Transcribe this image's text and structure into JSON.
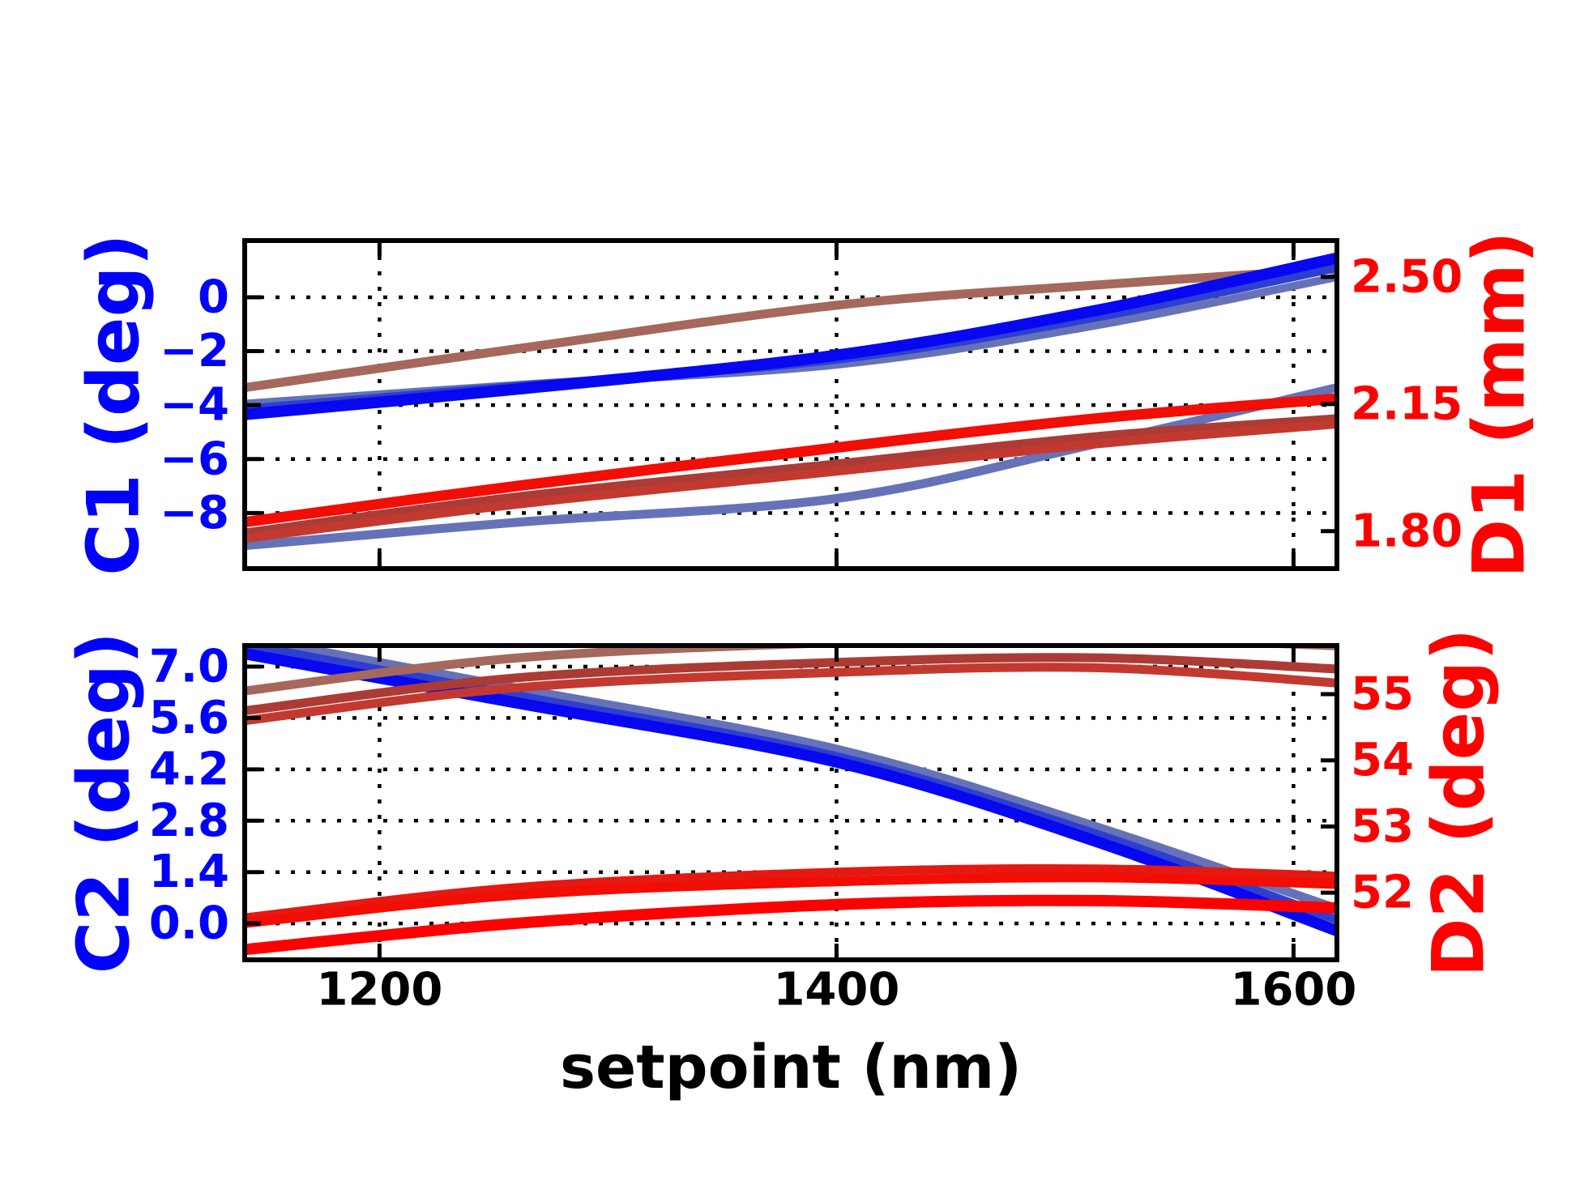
{
  "figure": {
    "background": "#ffffff",
    "frame_color": "#000000",
    "left_axis_color": "#0000ff",
    "right_axis_color": "#ff0000"
  },
  "chart_data": {
    "type": "line",
    "xlabel": "setpoint (nm)",
    "xlim": [
      1141,
      1619
    ],
    "x_ticks": [
      {
        "value": 1200,
        "label": "1200"
      },
      {
        "value": 1400,
        "label": "1400"
      },
      {
        "value": 1600,
        "label": "1600"
      }
    ],
    "x": [
      1141,
      1261,
      1400,
      1513,
      1619
    ],
    "grid": "dotted-from-left-axis",
    "panels": [
      {
        "id": "panel-1",
        "left_axis": {
          "label": "C1 (deg)",
          "color": "#0000ff",
          "lim": [
            -10.06,
            2.1
          ],
          "ticks": [
            {
              "value": 0,
              "label": "0"
            },
            {
              "value": -2,
              "label": "−2"
            },
            {
              "value": -4,
              "label": "−4"
            },
            {
              "value": -6,
              "label": "−6"
            },
            {
              "value": -8,
              "label": "−8"
            }
          ]
        },
        "right_axis": {
          "label": "D1 (mm)",
          "color": "#ff0000",
          "lim": [
            1.697,
            2.6
          ],
          "ticks": [
            {
              "value": 2.5,
              "label": "2.50"
            },
            {
              "value": 2.15,
              "label": "2.15"
            },
            {
              "value": 1.8,
              "label": "1.80"
            }
          ]
        },
        "series": [
          {
            "name": "D1-slate-blue",
            "axis": "right",
            "color": "#6672B8",
            "width": 11,
            "y": [
              1.76,
              1.825,
              1.89,
              2.04,
              2.195
            ]
          },
          {
            "name": "D1-dark-red-a",
            "axis": "right",
            "color": "#AC3B35",
            "width": 11,
            "y": [
              1.795,
              1.895,
              1.985,
              2.06,
              2.11
            ]
          },
          {
            "name": "D1-dark-red-b",
            "axis": "right",
            "color": "#C4392F",
            "width": 11,
            "y": [
              1.78,
              1.875,
              1.965,
              2.04,
              2.095
            ]
          },
          {
            "name": "D1-red",
            "axis": "right",
            "color": "#F20D05",
            "width": 13,
            "y": [
              1.825,
              1.925,
              2.03,
              2.11,
              2.165
            ]
          },
          {
            "name": "C1-brown",
            "axis": "left",
            "color": "#A5685C",
            "width": 11,
            "y": [
              -3.35,
              -1.9,
              -0.3,
              0.45,
              1.05
            ]
          },
          {
            "name": "C1-slate-blue",
            "axis": "left",
            "color": "#6672B8",
            "width": 10,
            "y": [
              -3.95,
              -3.25,
              -2.5,
              -1.05,
              0.75
            ]
          },
          {
            "name": "C1-medium-blue",
            "axis": "left",
            "color": "#2E3FD0",
            "width": 11,
            "y": [
              -4.15,
              -3.3,
              -2.3,
              -0.75,
              1.1
            ]
          },
          {
            "name": "C1-bright-blue",
            "axis": "left",
            "color": "#0707F2",
            "width": 14,
            "y": [
              -4.35,
              -3.4,
              -2.15,
              -0.5,
              1.45
            ]
          }
        ]
      },
      {
        "id": "panel-2",
        "left_axis": {
          "label": "C2 (deg)",
          "color": "#0000ff",
          "lim": [
            -0.99,
            7.574
          ],
          "ticks": [
            {
              "value": 7.0,
              "label": "7.0"
            },
            {
              "value": 5.6,
              "label": "5.6"
            },
            {
              "value": 4.2,
              "label": "4.2"
            },
            {
              "value": 2.8,
              "label": "2.8"
            },
            {
              "value": 1.4,
              "label": "1.4"
            },
            {
              "value": 0.0,
              "label": "0.0"
            }
          ]
        },
        "right_axis": {
          "label": "D2 (deg)",
          "color": "#ff0000",
          "lim": [
            50.985,
            55.735
          ],
          "ticks": [
            {
              "value": 55,
              "label": "55"
            },
            {
              "value": 54,
              "label": "54"
            },
            {
              "value": 53,
              "label": "53"
            },
            {
              "value": 52,
              "label": "52"
            }
          ]
        },
        "series": [
          {
            "name": "C2-slate-blue",
            "axis": "left",
            "color": "#6672B8",
            "width": 11,
            "y": [
              7.8,
              6.4,
              4.75,
              2.65,
              0.4
            ]
          },
          {
            "name": "C2-medium-blue",
            "axis": "left",
            "color": "#2E3FD0",
            "width": 11,
            "y": [
              7.6,
              6.2,
              4.55,
              2.45,
              0.1
            ]
          },
          {
            "name": "C2-bright-blue",
            "axis": "left",
            "color": "#0707F2",
            "width": 14,
            "y": [
              7.35,
              6.0,
              4.4,
              2.25,
              -0.2
            ]
          },
          {
            "name": "D2-brown",
            "axis": "right",
            "color": "#A5685C",
            "width": 11,
            "y": [
              55.05,
              55.55,
              55.78,
              55.85,
              55.73
            ]
          },
          {
            "name": "D2-dark-red-a",
            "axis": "right",
            "color": "#AC3B35",
            "width": 11,
            "y": [
              54.75,
              55.25,
              55.48,
              55.55,
              55.38
            ]
          },
          {
            "name": "D2-dark-red-b",
            "axis": "right",
            "color": "#C4392F",
            "width": 11,
            "y": [
              54.6,
              55.1,
              55.33,
              55.4,
              55.17
            ]
          },
          {
            "name": "D2-red-a",
            "axis": "right",
            "color": "#E51911",
            "width": 11,
            "y": [
              51.62,
              52.08,
              52.31,
              52.36,
              52.25
            ]
          },
          {
            "name": "D2-red-b",
            "axis": "right",
            "color": "#F20D05",
            "width": 12,
            "y": [
              51.54,
              51.97,
              52.17,
              52.23,
              52.13
            ]
          },
          {
            "name": "D2-red-c",
            "axis": "right",
            "color": "#FF0000",
            "width": 14,
            "y": [
              51.14,
              51.54,
              51.82,
              51.88,
              51.77
            ]
          }
        ]
      }
    ]
  }
}
